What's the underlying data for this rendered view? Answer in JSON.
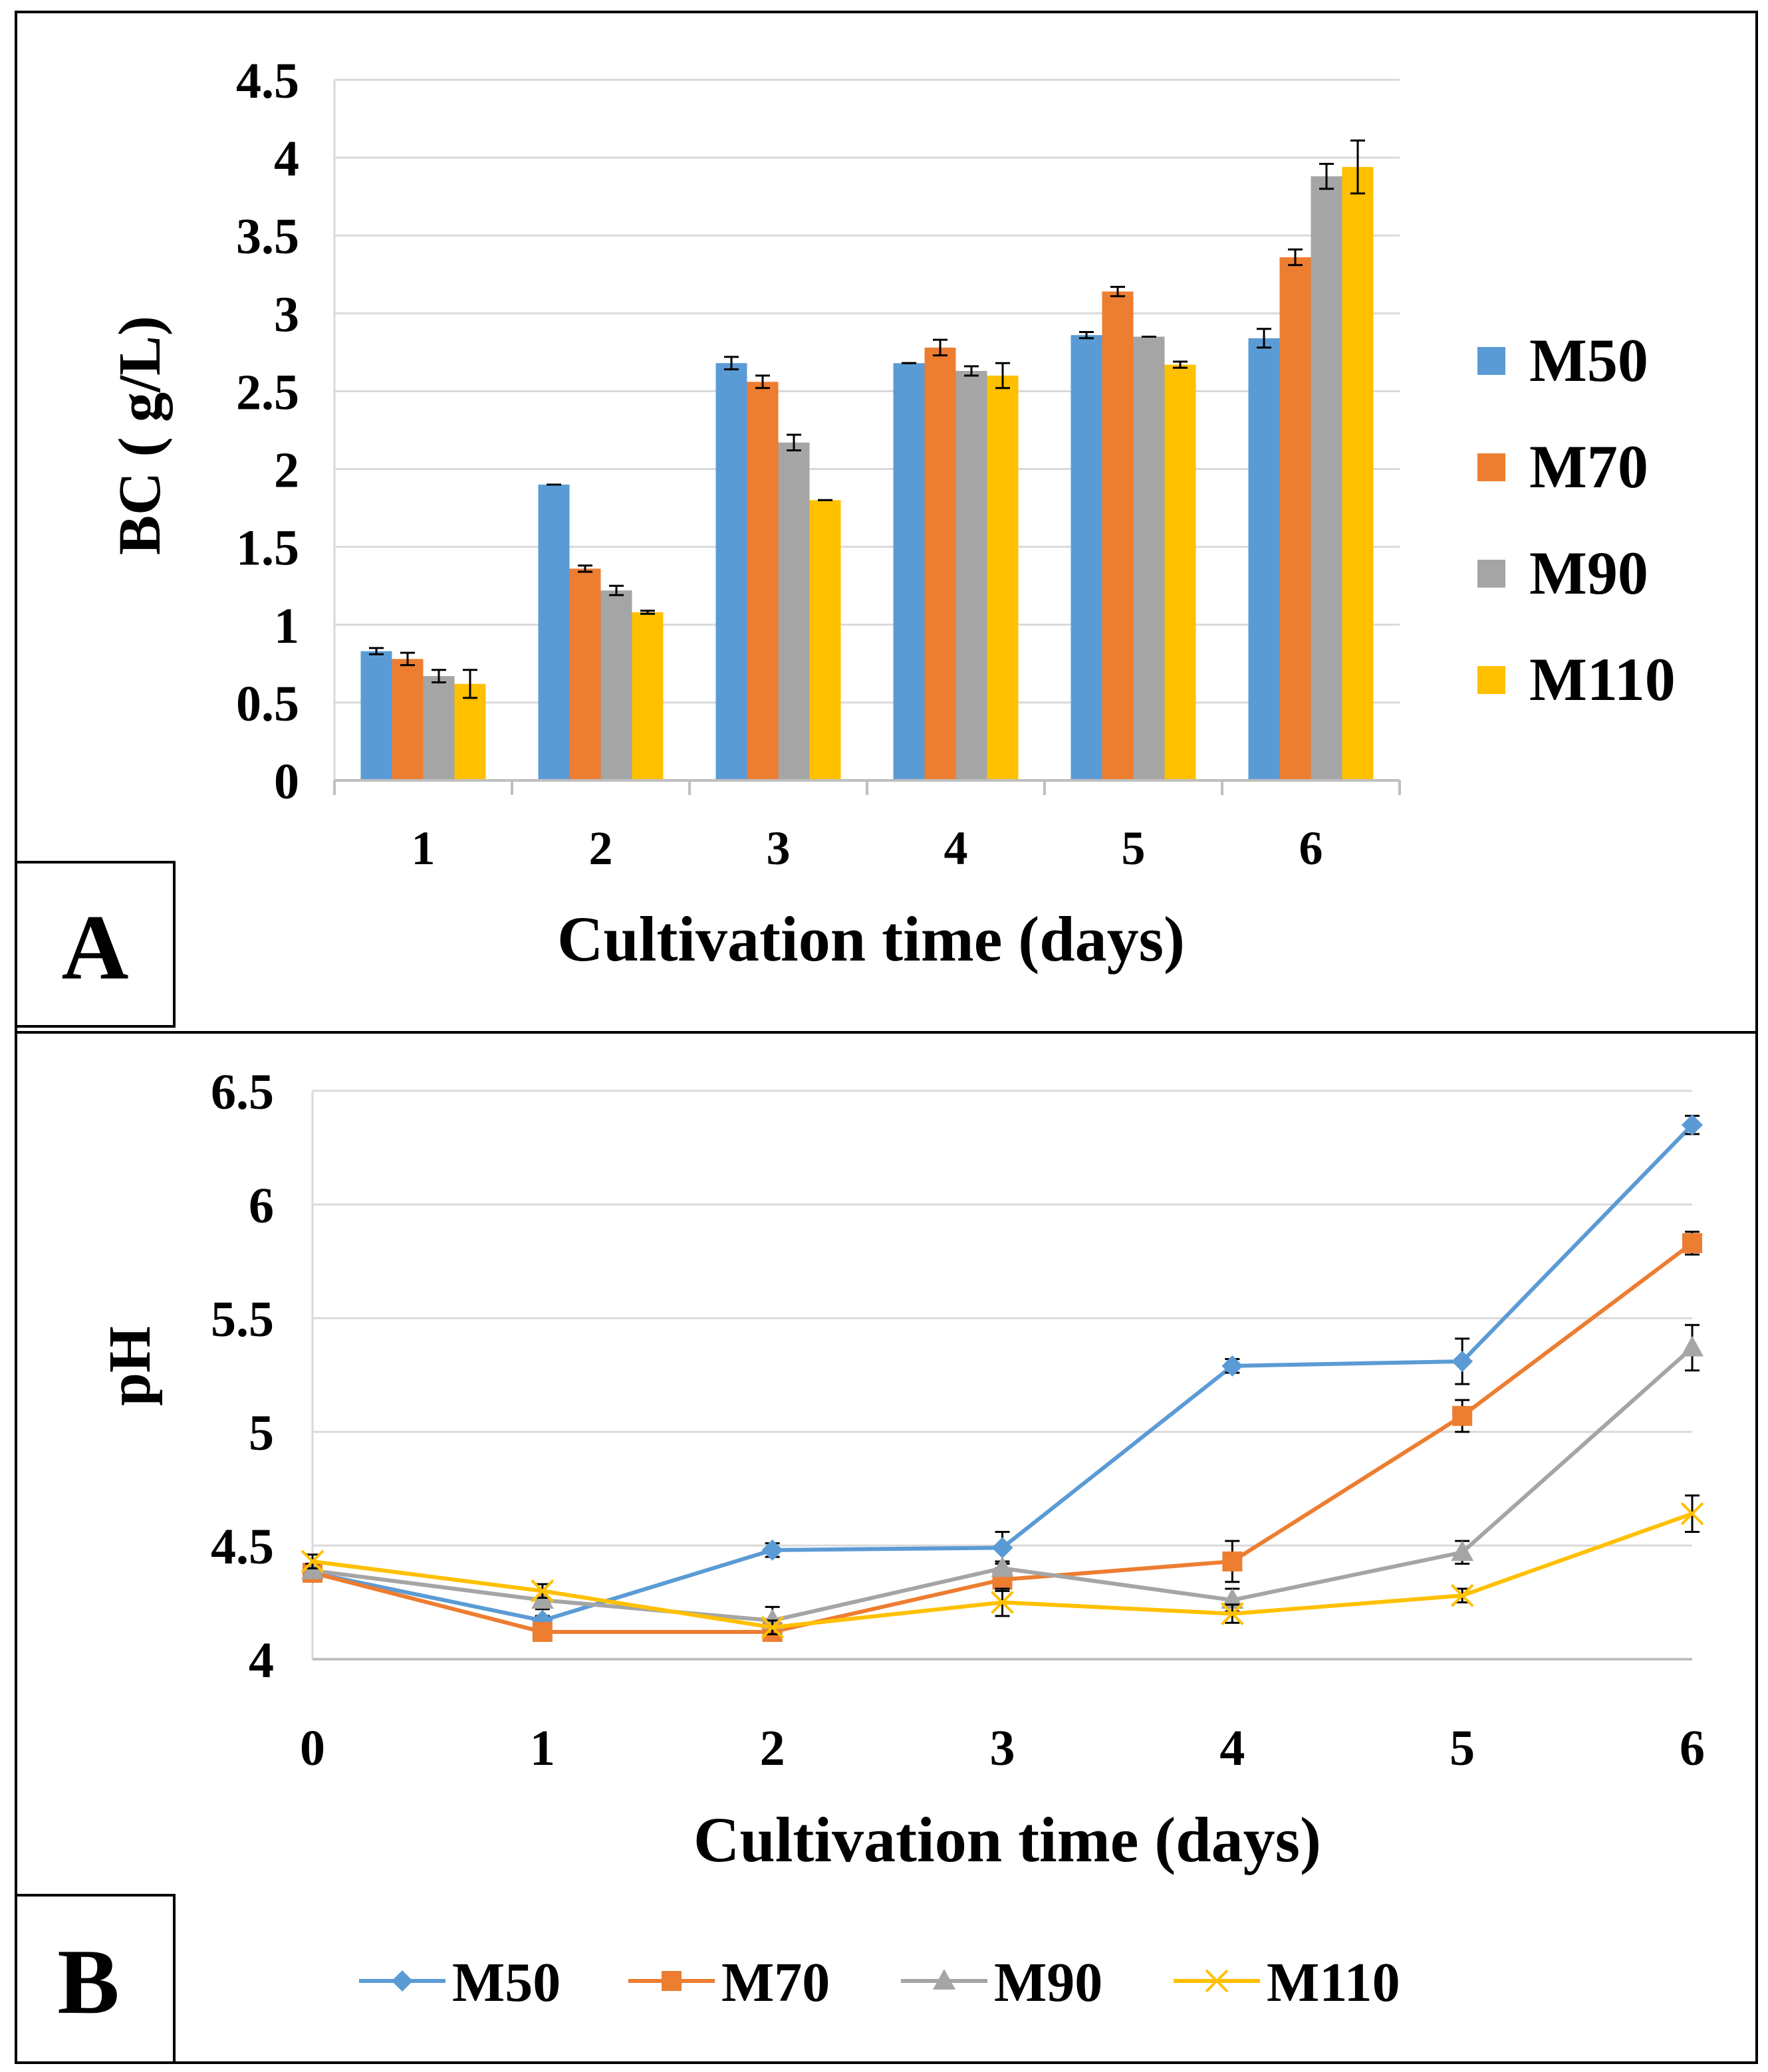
{
  "colors": {
    "M50": "#5b9bd5",
    "M70": "#ed7d31",
    "M90": "#a5a5a5",
    "M110": "#ffc000",
    "grid": "#d9d9d9",
    "frame": "#000000"
  },
  "panels": {
    "a_label": "A",
    "b_label": "B"
  },
  "chart_data": [
    {
      "type": "bar",
      "panel": "A",
      "categories": [
        "1",
        "2",
        "3",
        "4",
        "5",
        "6"
      ],
      "series": [
        {
          "name": "M50",
          "values": [
            0.83,
            1.9,
            2.68,
            2.68,
            2.86,
            2.84
          ],
          "errors": [
            0.02,
            0.0,
            0.04,
            0.0,
            0.02,
            0.06
          ]
        },
        {
          "name": "M70",
          "values": [
            0.78,
            1.36,
            2.56,
            2.78,
            3.14,
            3.36
          ],
          "errors": [
            0.04,
            0.02,
            0.04,
            0.05,
            0.03,
            0.05
          ]
        },
        {
          "name": "M90",
          "values": [
            0.67,
            1.22,
            2.17,
            2.63,
            2.85,
            3.88
          ],
          "errors": [
            0.04,
            0.03,
            0.05,
            0.03,
            0.0,
            0.08
          ]
        },
        {
          "name": "M110",
          "values": [
            0.62,
            1.08,
            1.8,
            2.6,
            2.67,
            3.94
          ],
          "errors": [
            0.09,
            0.01,
            0.0,
            0.08,
            0.02,
            0.17
          ]
        }
      ],
      "yticks": [
        "0",
        "0.5",
        "1",
        "1.5",
        "2",
        "2.5",
        "3",
        "3.5",
        "4",
        "4.5"
      ],
      "ylim": [
        0,
        4.5
      ],
      "xlabel": "Cultivation time (days)",
      "ylabel": "BC ( g/L)",
      "legend": [
        "M50",
        "M70",
        "M90",
        "M110"
      ],
      "legend_position": "right"
    },
    {
      "type": "line",
      "panel": "B",
      "x": [
        0,
        1,
        2,
        3,
        4,
        5,
        6
      ],
      "xticks": [
        "0",
        "1",
        "2",
        "3",
        "4",
        "5",
        "6"
      ],
      "series": [
        {
          "name": "M50",
          "marker": "diamond",
          "values": [
            4.38,
            4.17,
            4.48,
            4.49,
            5.29,
            5.31,
            6.35
          ],
          "errors": [
            0.02,
            0.02,
            0.03,
            0.07,
            0.03,
            0.1,
            0.04
          ]
        },
        {
          "name": "M70",
          "marker": "square",
          "values": [
            4.38,
            4.12,
            4.12,
            4.35,
            4.43,
            5.07,
            5.83
          ],
          "errors": [
            0.03,
            0.02,
            0.02,
            0.05,
            0.09,
            0.07,
            0.05
          ]
        },
        {
          "name": "M90",
          "marker": "triangle",
          "values": [
            4.39,
            4.26,
            4.17,
            4.4,
            4.26,
            4.47,
            5.37
          ],
          "errors": [
            0.03,
            0.04,
            0.06,
            0.03,
            0.05,
            0.05,
            0.1
          ]
        },
        {
          "name": "M110",
          "marker": "x",
          "values": [
            4.43,
            4.3,
            4.14,
            4.25,
            4.2,
            4.28,
            4.64
          ],
          "errors": [
            0.03,
            0.03,
            0.03,
            0.06,
            0.04,
            0.03,
            0.08
          ]
        }
      ],
      "yticks": [
        "4",
        "4.5",
        "5",
        "5.5",
        "6",
        "6.5"
      ],
      "ylim": [
        4,
        6.5
      ],
      "xlabel": "Cultivation time (days)",
      "ylabel": "pH",
      "legend": [
        "M50",
        "M70",
        "M90",
        "M110"
      ],
      "legend_position": "bottom"
    }
  ]
}
